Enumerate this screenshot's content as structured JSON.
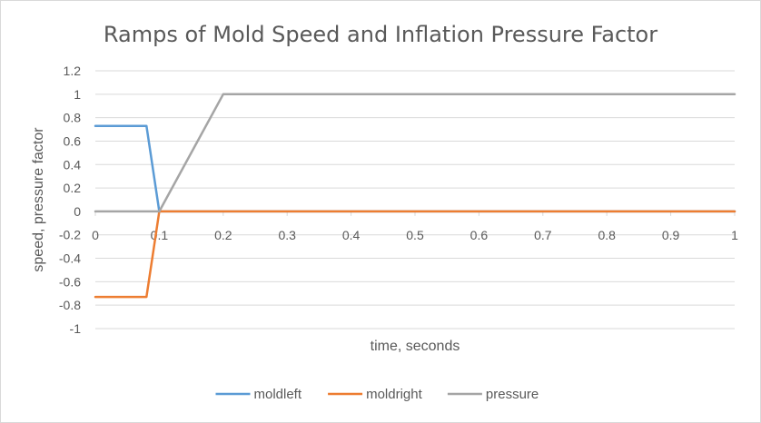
{
  "chart_data": {
    "type": "line",
    "title": "Ramps of Mold Speed and Inflation Pressure Factor",
    "xlabel": "time, seconds",
    "ylabel": "speed, pressure factor",
    "xlim": [
      0,
      1
    ],
    "ylim": [
      -1,
      1.2
    ],
    "xticks": [
      "0",
      "0.1",
      "0.2",
      "0.3",
      "0.4",
      "0.5",
      "0.6",
      "0.7",
      "0.8",
      "0.9",
      "1"
    ],
    "yticks": [
      "1.2",
      "1",
      "0.8",
      "0.6",
      "0.4",
      "0.2",
      "0",
      "-0.2",
      "-0.4",
      "-0.6",
      "-0.8",
      "-1"
    ],
    "grid": true,
    "legend_position": "bottom",
    "series": [
      {
        "name": "moldleft",
        "color": "#5b9bd5",
        "x": [
          0,
          0.08,
          0.1,
          1
        ],
        "y": [
          0.73,
          0.73,
          0,
          0
        ]
      },
      {
        "name": "moldright",
        "color": "#ed7d31",
        "x": [
          0,
          0.08,
          0.1,
          1
        ],
        "y": [
          -0.73,
          -0.73,
          0,
          0
        ]
      },
      {
        "name": "pressure",
        "color": "#a5a5a5",
        "x": [
          0,
          0.1,
          0.2,
          1
        ],
        "y": [
          0,
          0,
          1,
          1
        ]
      }
    ]
  }
}
